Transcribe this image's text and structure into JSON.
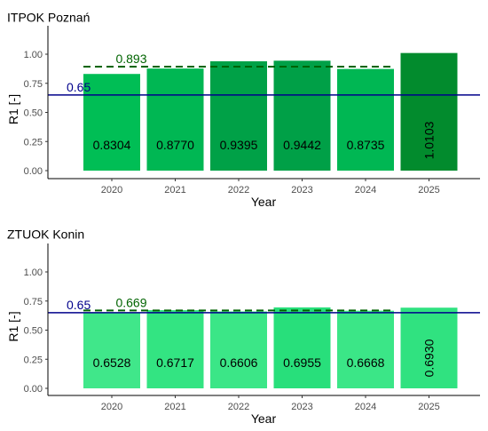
{
  "chart_data": [
    {
      "type": "bar",
      "title": "ITPOK Poznań",
      "xlabel": "Year",
      "ylabel": "R1 [-]",
      "categories": [
        "2020",
        "2021",
        "2022",
        "2023",
        "2024",
        "2025"
      ],
      "values": [
        0.8304,
        0.877,
        0.9395,
        0.9442,
        0.8735,
        1.0103
      ],
      "value_labels": [
        "0.8304",
        "0.8770",
        "0.9395",
        "0.9442",
        "0.8735",
        "1.0103"
      ],
      "bar_colors": [
        "#00be55",
        "#00b753",
        "#00a147",
        "#00a047",
        "#00b753",
        "#028b2d"
      ],
      "ylim": [
        0,
        1.25
      ],
      "yticks": [
        "0.00",
        "0.25",
        "0.50",
        "0.75",
        "1.00"
      ],
      "threshold_line": {
        "value": 0.65,
        "label": "0.65",
        "color": "#00008b"
      },
      "average_line": {
        "value": 0.893,
        "label": "0.893",
        "color": "#006400",
        "from": "2020",
        "to": "2024"
      },
      "grid": false
    },
    {
      "type": "bar",
      "title": "ZTUOK Konin",
      "xlabel": "Year",
      "ylabel": "R1 [-]",
      "categories": [
        "2020",
        "2021",
        "2022",
        "2023",
        "2024",
        "2025"
      ],
      "values": [
        0.6528,
        0.6717,
        0.6606,
        0.6955,
        0.6668,
        0.693
      ],
      "value_labels": [
        "0.6528",
        "0.6717",
        "0.6606",
        "0.6955",
        "0.6668",
        "0.6930"
      ],
      "bar_colors": [
        "#40e78a",
        "#33e482",
        "#3be687",
        "#28df7b",
        "#3be687",
        "#30e280"
      ],
      "ylim": [
        0,
        1.25
      ],
      "yticks": [
        "0.00",
        "0.25",
        "0.50",
        "0.75",
        "1.00"
      ],
      "threshold_line": {
        "value": 0.65,
        "label": "0.65",
        "color": "#00008b"
      },
      "average_line": {
        "value": 0.669,
        "label": "0.669",
        "color": "#006400",
        "from": "2020",
        "to": "2024"
      },
      "grid": false
    }
  ]
}
